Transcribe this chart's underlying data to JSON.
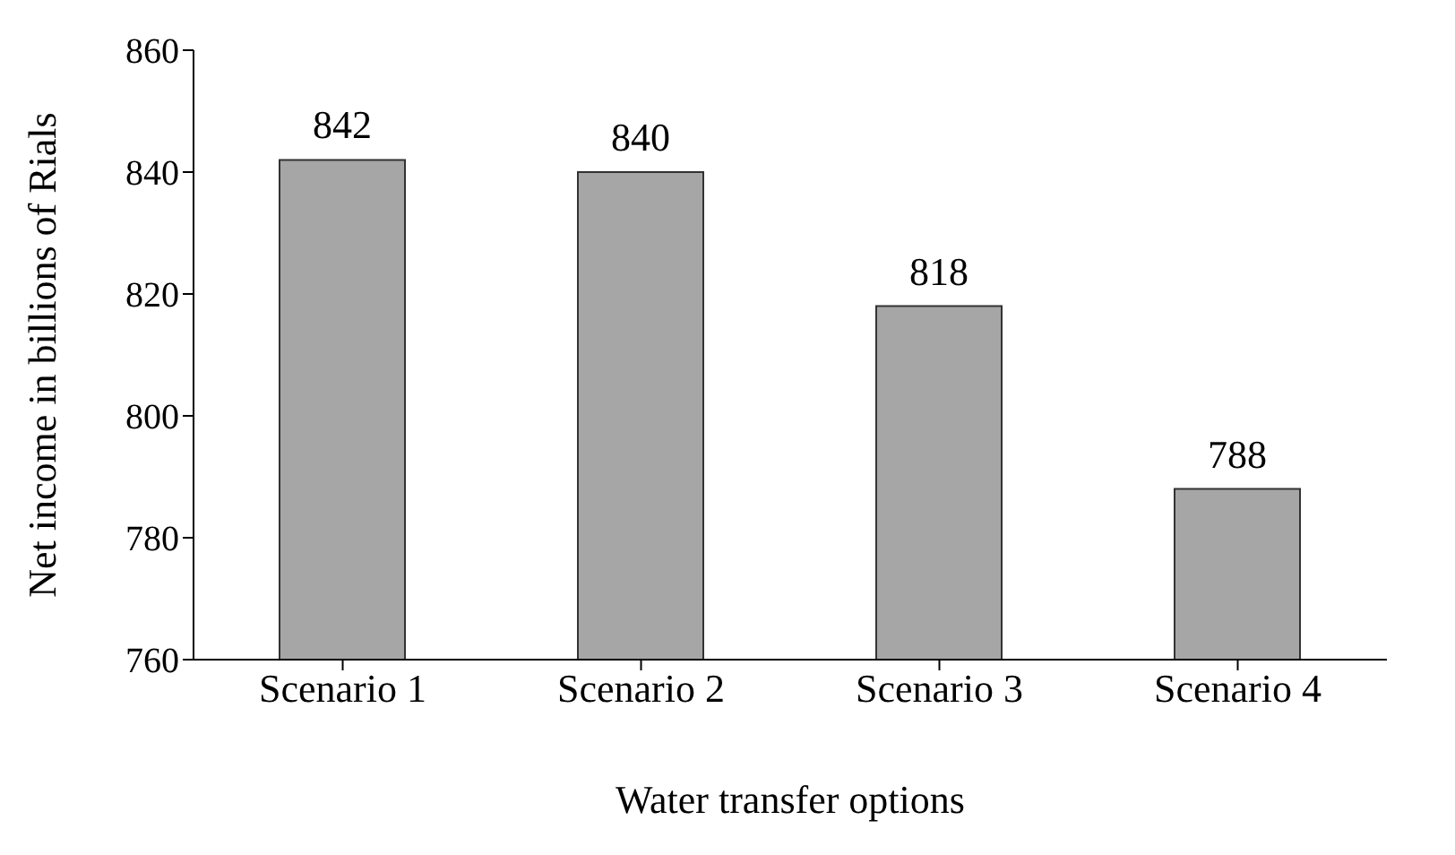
{
  "chart_data": {
    "type": "bar",
    "xlabel": "Water transfer options",
    "ylabel": "Net income in billions of Rials",
    "categories": [
      "Scenario 1",
      "Scenario 2",
      "Scenario 3",
      "Scenario 4"
    ],
    "values": [
      842,
      840,
      818,
      788
    ],
    "color": "#a6a6a6",
    "ylim": [
      760,
      860
    ],
    "yticks": [
      760,
      780,
      800,
      820,
      840,
      860
    ],
    "grid": false,
    "data_labels": true
  }
}
